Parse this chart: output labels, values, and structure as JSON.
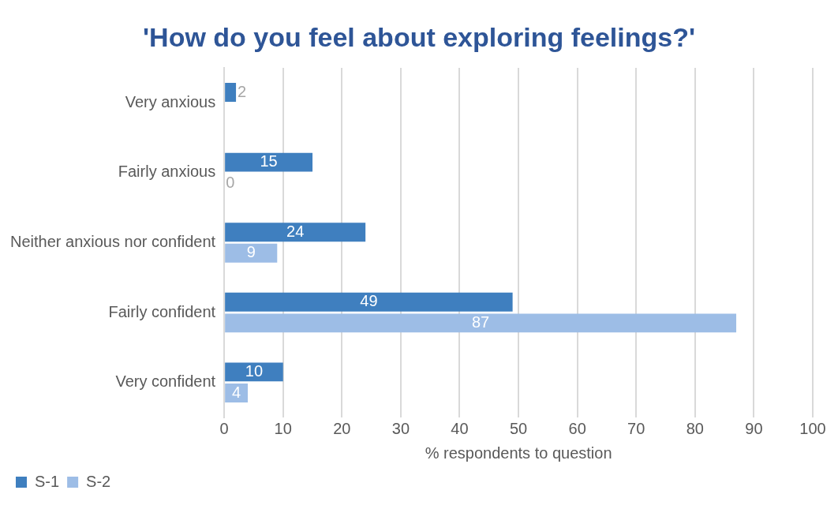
{
  "chart_data": {
    "type": "bar",
    "orientation": "horizontal",
    "title": "'How do you feel about exploring feelings?'",
    "xlabel": "% respondents to question",
    "categories": [
      "Very anxious",
      "Fairly anxious",
      "Neither anxious nor confident",
      "Fairly confident",
      "Very confident"
    ],
    "series": [
      {
        "name": "S-1",
        "color": "#3f7fbf",
        "values": [
          2,
          15,
          24,
          49,
          10
        ],
        "value_labels": [
          "2",
          "15",
          "24",
          "49",
          "10"
        ]
      },
      {
        "name": "S-2",
        "color": "#9dbde6",
        "values": [
          0,
          0,
          9,
          87,
          4
        ],
        "value_labels": [
          null,
          "0",
          "9",
          "87",
          "4"
        ]
      }
    ],
    "xlim": [
      0,
      100
    ],
    "xticks": [
      0,
      10,
      20,
      30,
      40,
      50,
      60,
      70,
      80,
      90,
      100
    ],
    "grid": "x",
    "legend": "bottom"
  }
}
